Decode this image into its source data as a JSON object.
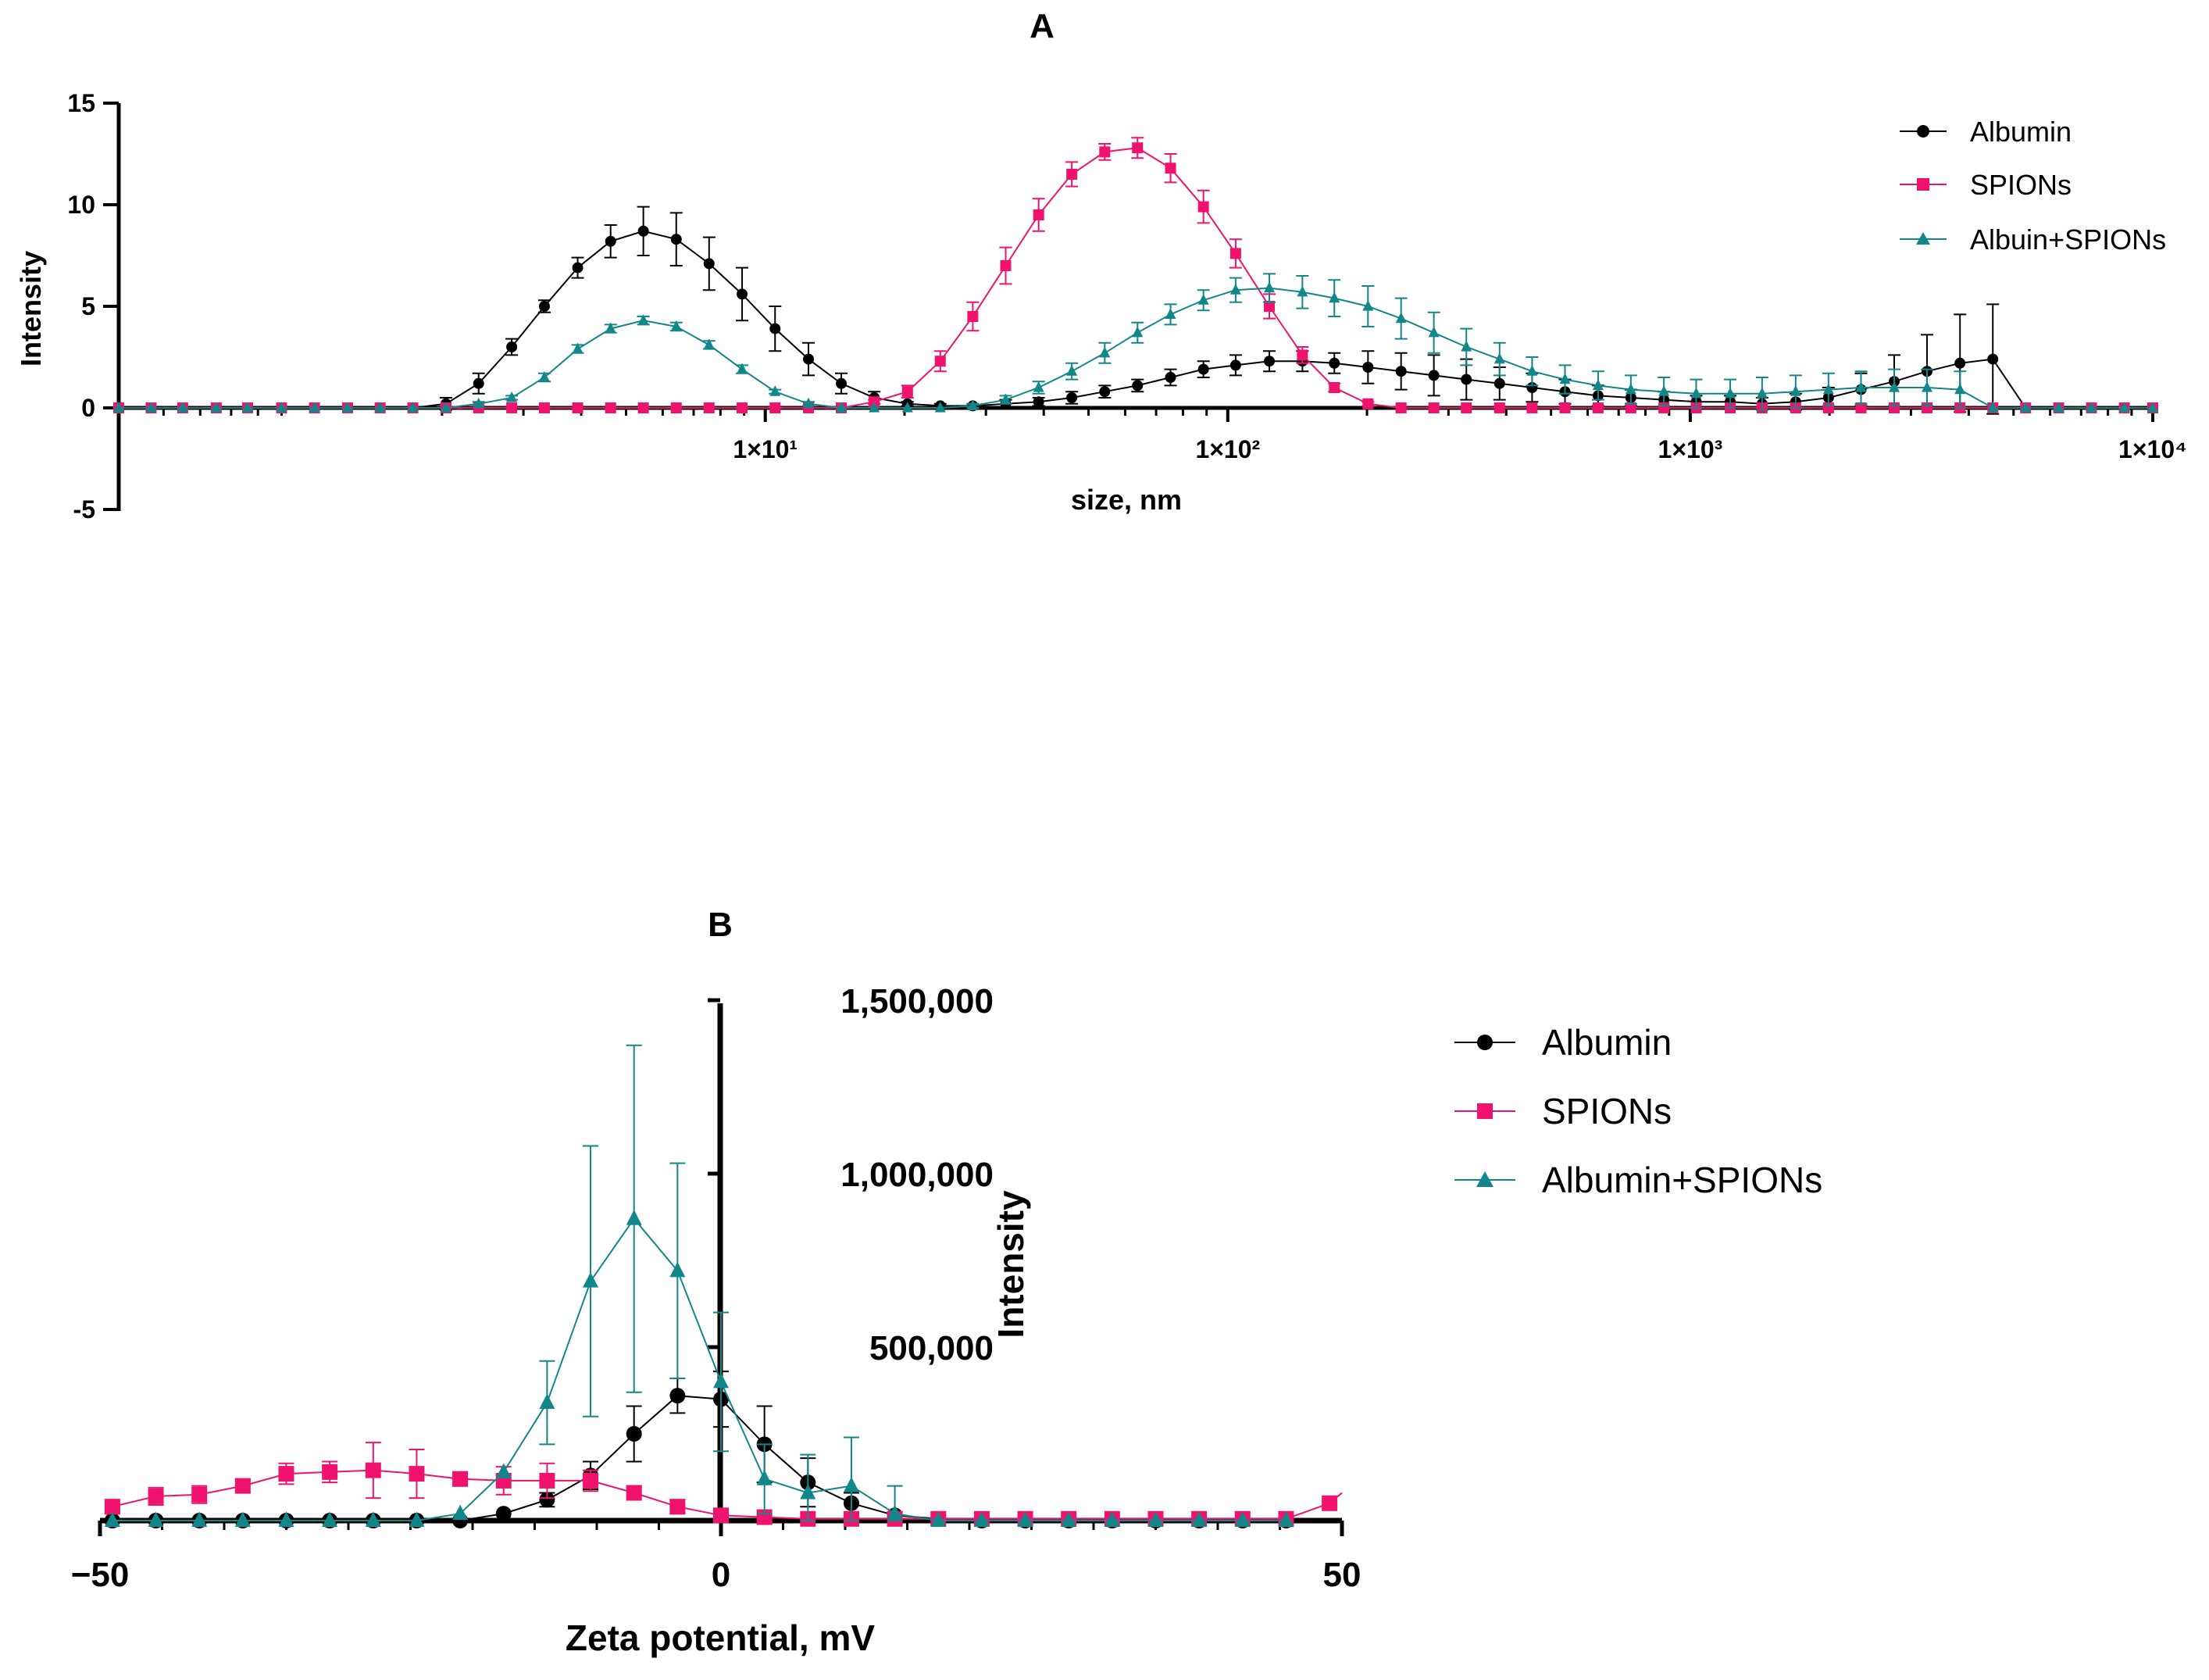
{
  "colors": {
    "albumin": "#000000",
    "spions": "#f0136e",
    "combo": "#12878a",
    "axis": "#000000"
  },
  "chart_data": [
    {
      "id": "A",
      "type": "line",
      "title": "A",
      "xlabel": "size, nm",
      "ylabel": "Intensity",
      "xscale": "log",
      "xlim": [
        0.4,
        10000
      ],
      "ylim": [
        -5,
        15
      ],
      "yticks": [
        -5,
        0,
        5,
        10,
        15
      ],
      "ytick_labels": [
        "-5",
        "0",
        "5",
        "10",
        "15"
      ],
      "xticks": [
        10,
        100,
        1000,
        10000
      ],
      "xtick_labels": [
        "1×10¹",
        "1×10²",
        "1×10³",
        "1×10⁴"
      ],
      "legend_position": "top-right",
      "legend": [
        "Albumin",
        "SPIONs",
        "Albuin+SPIONs"
      ],
      "x": [
        0.4,
        0.47,
        0.55,
        0.65,
        0.76,
        0.9,
        1.06,
        1.25,
        1.47,
        1.73,
        2.04,
        2.4,
        2.83,
        3.33,
        3.93,
        4.63,
        5.45,
        6.42,
        7.56,
        8.91,
        10.5,
        12.4,
        14.6,
        17.2,
        20.3,
        23.9,
        28.1,
        33.1,
        39.0,
        46.0,
        54.2,
        63.8,
        75.2,
        88.6,
        104,
        123,
        145,
        170,
        201,
        237,
        279,
        328,
        387,
        455,
        536,
        632,
        744,
        877,
        1030,
        1220,
        1430,
        1690,
        1990,
        2340,
        2760,
        3250,
        3830,
        4510,
        5310,
        6260,
        7370,
        8680,
        10000
      ],
      "series": [
        {
          "name": "Albumin",
          "marker": "circle",
          "values": [
            0,
            0,
            0,
            0,
            0,
            0,
            0,
            0,
            0,
            0,
            0.2,
            1.2,
            3.0,
            5.0,
            6.9,
            8.2,
            8.7,
            8.3,
            7.1,
            5.6,
            3.9,
            2.4,
            1.2,
            0.5,
            0.2,
            0.1,
            0.1,
            0.2,
            0.3,
            0.5,
            0.8,
            1.1,
            1.5,
            1.9,
            2.1,
            2.3,
            2.3,
            2.2,
            2.0,
            1.8,
            1.6,
            1.4,
            1.2,
            1.0,
            0.8,
            0.6,
            0.5,
            0.4,
            0.3,
            0.3,
            0.2,
            0.3,
            0.5,
            0.9,
            1.3,
            1.8,
            2.2,
            2.4,
            0,
            0,
            0,
            0,
            0
          ],
          "errors": [
            0,
            0,
            0,
            0,
            0,
            0,
            0,
            0,
            0,
            0,
            0.3,
            0.5,
            0.4,
            0.3,
            0.5,
            0.8,
            1.2,
            1.3,
            1.3,
            1.3,
            1.1,
            0.8,
            0.5,
            0.3,
            0.1,
            0.1,
            0.1,
            0.2,
            0.2,
            0.3,
            0.3,
            0.3,
            0.4,
            0.4,
            0.5,
            0.5,
            0.5,
            0.5,
            0.8,
            0.9,
            1.0,
            1.0,
            0.8,
            0.7,
            0.6,
            0.5,
            0.4,
            0.4,
            0.3,
            0.3,
            0.3,
            0.4,
            0.5,
            0.8,
            1.3,
            1.8,
            2.4,
            2.7,
            0,
            0,
            0,
            0,
            0
          ]
        },
        {
          "name": "SPIONs",
          "marker": "square",
          "values": [
            0,
            0,
            0,
            0,
            0,
            0,
            0,
            0,
            0,
            0,
            0,
            0,
            0,
            0,
            0,
            0,
            0,
            0,
            0,
            0,
            0,
            0,
            0,
            0.3,
            0.8,
            2.3,
            4.5,
            7.0,
            9.5,
            11.5,
            12.6,
            12.8,
            11.8,
            9.9,
            7.6,
            5.0,
            2.6,
            1.0,
            0.2,
            0,
            0,
            0,
            0,
            0,
            0,
            0,
            0,
            0,
            0,
            0,
            0,
            0,
            0,
            0,
            0,
            0,
            0,
            0,
            0,
            0,
            0,
            0,
            0
          ],
          "errors": [
            0,
            0,
            0,
            0,
            0,
            0,
            0,
            0,
            0,
            0,
            0,
            0,
            0,
            0,
            0,
            0,
            0,
            0,
            0,
            0,
            0,
            0,
            0,
            0.1,
            0.3,
            0.5,
            0.7,
            0.9,
            0.8,
            0.6,
            0.4,
            0.5,
            0.7,
            0.8,
            0.7,
            0.6,
            0.4,
            0.2,
            0.1,
            0,
            0,
            0,
            0,
            0,
            0,
            0,
            0,
            0,
            0,
            0,
            0,
            0,
            0,
            0,
            0,
            0,
            0,
            0,
            0,
            0,
            0,
            0,
            0
          ]
        },
        {
          "name": "Albuin+SPIONs",
          "marker": "triangle",
          "values": [
            0,
            0,
            0,
            0,
            0,
            0,
            0,
            0,
            0,
            0,
            0,
            0.2,
            0.5,
            1.5,
            2.9,
            3.9,
            4.3,
            4.0,
            3.1,
            1.9,
            0.8,
            0.2,
            0,
            0,
            0,
            0,
            0.1,
            0.4,
            1.0,
            1.8,
            2.7,
            3.7,
            4.6,
            5.3,
            5.8,
            5.9,
            5.7,
            5.4,
            5.0,
            4.4,
            3.7,
            3.0,
            2.4,
            1.8,
            1.4,
            1.1,
            0.9,
            0.8,
            0.7,
            0.7,
            0.7,
            0.8,
            0.9,
            1.0,
            1.0,
            1.0,
            0.9,
            0,
            0,
            0,
            0,
            0,
            0
          ],
          "errors": [
            0,
            0,
            0,
            0,
            0,
            0,
            0,
            0,
            0,
            0,
            0,
            0.1,
            0.1,
            0.2,
            0.2,
            0.2,
            0.2,
            0.2,
            0.2,
            0.2,
            0.1,
            0.1,
            0,
            0,
            0,
            0,
            0.1,
            0.2,
            0.3,
            0.4,
            0.5,
            0.5,
            0.5,
            0.5,
            0.6,
            0.7,
            0.8,
            0.9,
            1.0,
            1.0,
            1.0,
            0.9,
            0.8,
            0.7,
            0.7,
            0.7,
            0.7,
            0.7,
            0.7,
            0.7,
            0.8,
            0.8,
            0.8,
            0.8,
            0.9,
            0.9,
            0.9,
            0,
            0,
            0,
            0,
            0,
            0
          ]
        }
      ]
    },
    {
      "id": "B",
      "type": "line",
      "title": "B",
      "xlabel": "Zeta potential, mV",
      "ylabel": "Intensity",
      "xlim": [
        -50,
        50
      ],
      "ylim": [
        0,
        1500000
      ],
      "xticks": [
        -50,
        0,
        50
      ],
      "xtick_labels": [
        "−50",
        "0",
        "50"
      ],
      "yticks": [
        500000,
        1000000,
        1500000
      ],
      "ytick_labels": [
        "500,000",
        "1,000,000",
        "1,500,000"
      ],
      "y_axis_position": "x = 0",
      "legend_position": "right",
      "legend": [
        "Albumin",
        "SPIONs",
        "Albumin+SPIONs"
      ],
      "x": [
        -49,
        -45.5,
        -42,
        -38.5,
        -35,
        -31.5,
        -28,
        -24.5,
        -21,
        -17.5,
        -14,
        -10.5,
        -7,
        -3.5,
        0,
        3.5,
        7,
        10.5,
        14,
        17.5,
        21,
        24.5,
        28,
        31.5,
        35,
        38.5,
        42,
        45.5,
        49
      ],
      "series": [
        {
          "name": "Albumin",
          "marker": "circle",
          "values": [
            0,
            0,
            0,
            0,
            0,
            0,
            0,
            0,
            0,
            20000,
            60000,
            130000,
            250000,
            360000,
            350000,
            220000,
            110000,
            50000,
            15000,
            5000,
            0,
            0,
            0,
            0,
            0,
            0,
            0,
            0,
            null
          ],
          "errors": [
            0,
            0,
            0,
            0,
            0,
            0,
            0,
            0,
            0,
            0,
            20000,
            40000,
            80000,
            50000,
            80000,
            110000,
            70000,
            30000,
            10000,
            0,
            0,
            0,
            0,
            0,
            0,
            0,
            0,
            0,
            null
          ]
        },
        {
          "name": "SPIONs",
          "marker": "square",
          "values": [
            40000,
            70000,
            75000,
            100000,
            135000,
            140000,
            145000,
            135000,
            120000,
            115000,
            115000,
            115000,
            80000,
            40000,
            15000,
            10000,
            5000,
            5000,
            5000,
            5000,
            5000,
            5000,
            5000,
            5000,
            5000,
            5000,
            5000,
            5000,
            50000
          ],
          "errors": [
            20000,
            25000,
            25000,
            20000,
            30000,
            30000,
            80000,
            70000,
            20000,
            40000,
            50000,
            30000,
            20000,
            20000,
            10000,
            0,
            0,
            0,
            0,
            0,
            0,
            0,
            0,
            0,
            0,
            0,
            0,
            0,
            0
          ]
        },
        {
          "name": "Albumin+SPIONs",
          "marker": "triangle",
          "values": [
            0,
            0,
            0,
            0,
            0,
            0,
            0,
            0,
            20000,
            140000,
            340000,
            690000,
            870000,
            720000,
            400000,
            120000,
            80000,
            100000,
            20000,
            0,
            0,
            0,
            0,
            0,
            0,
            0,
            0,
            0,
            null
          ],
          "errors": [
            0,
            0,
            0,
            0,
            0,
            0,
            0,
            0,
            0,
            0,
            120000,
            390000,
            500000,
            310000,
            200000,
            100000,
            110000,
            140000,
            80000,
            0,
            0,
            0,
            0,
            0,
            0,
            0,
            0,
            0,
            null
          ]
        }
      ]
    }
  ]
}
